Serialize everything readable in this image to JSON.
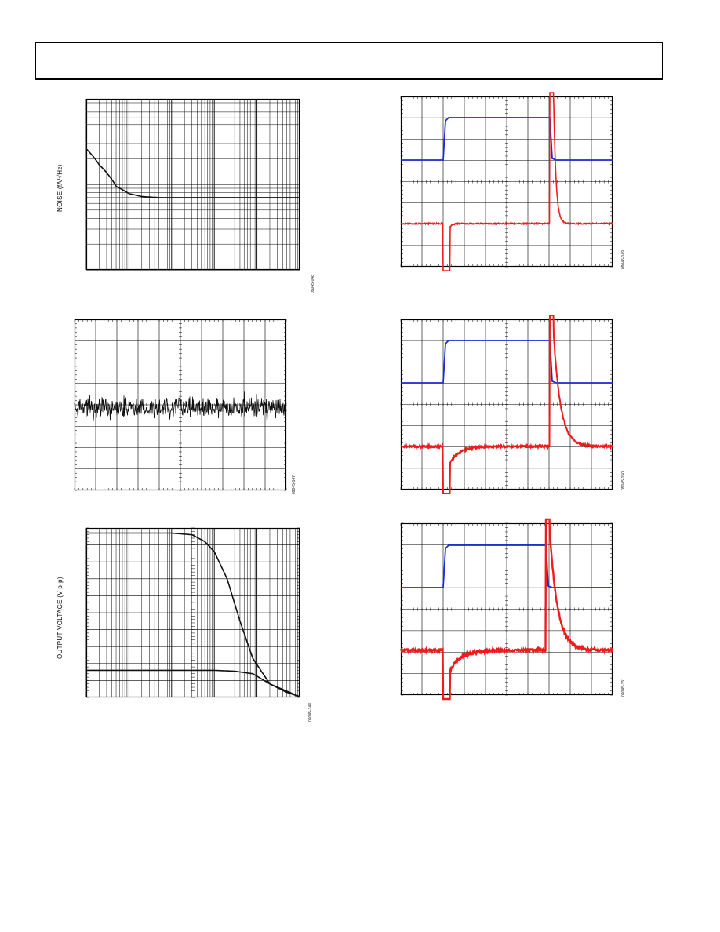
{
  "page": {
    "header": ""
  },
  "figures": [
    {
      "id": "noise",
      "ylabel": "NOISE (fA/√Hz)",
      "fig_id": "09045-048"
    },
    {
      "id": "lowfreq",
      "ylabel": "",
      "fig_id": "09045-147"
    },
    {
      "id": "largesignal",
      "ylabel": "OUTPUT VOLTAGE (V p-p)",
      "fig_id": "09045-148"
    },
    {
      "id": "overload1",
      "ylabel": "",
      "fig_id": "09045-149"
    },
    {
      "id": "overload2",
      "ylabel": "",
      "fig_id": "09045-150"
    },
    {
      "id": "overload3",
      "ylabel": "",
      "fig_id": "09045-151"
    }
  ],
  "colors": {
    "blue": "#1f2bd6",
    "red": "#ee1c1c",
    "black": "#111111"
  },
  "chart_data": [
    {
      "type": "line",
      "chart": "noise",
      "xscale": "log",
      "yscale": "log",
      "xlim": [
        1,
        100000
      ],
      "ylim": [
        0.1,
        10
      ],
      "series": [
        {
          "x": [
            1,
            2,
            5,
            10,
            20,
            50,
            100,
            1000,
            100000
          ],
          "y": [
            2.6,
            1.7,
            0.95,
            0.78,
            0.72,
            0.7,
            0.7,
            0.7,
            0.7
          ]
        }
      ]
    },
    {
      "type": "line",
      "chart": "lowfreq",
      "xlim": [
        0,
        10
      ],
      "ylim": [
        -4,
        4
      ],
      "grid": true,
      "series": [
        {
          "values_generated": true
        }
      ]
    },
    {
      "type": "line",
      "chart": "largesignal",
      "xscale": "log",
      "xlim": [
        1,
        100000
      ],
      "ylim": [
        0,
        10
      ],
      "series": [
        {
          "x": [
            1,
            100,
            300,
            600,
            1000,
            2000,
            4000,
            8000,
            20000,
            100000
          ],
          "y": [
            9.7,
            9.7,
            9.6,
            9.2,
            8.6,
            7.0,
            4.5,
            2.3,
            0.8,
            0.05
          ]
        },
        {
          "x": [
            1,
            100,
            1000,
            3000,
            8000,
            20000,
            50000,
            100000
          ],
          "y": [
            1.6,
            1.6,
            1.6,
            1.55,
            1.4,
            0.8,
            0.3,
            0.05
          ]
        }
      ]
    },
    {
      "type": "line",
      "chart": "overload1",
      "xlim": [
        0,
        10
      ],
      "ylim": [
        0,
        8
      ],
      "grid": true,
      "series": [
        {
          "name": "",
          "color": "blue"
        },
        {
          "name": "",
          "color": "red"
        }
      ]
    },
    {
      "type": "line",
      "chart": "overload2",
      "xlim": [
        0,
        10
      ],
      "ylim": [
        0,
        8
      ],
      "grid": true,
      "series": [
        {
          "name": "",
          "color": "blue"
        },
        {
          "name": "",
          "color": "red"
        }
      ]
    },
    {
      "type": "line",
      "chart": "overload3",
      "xlim": [
        0,
        10
      ],
      "ylim": [
        0,
        8
      ],
      "grid": true,
      "series": [
        {
          "name": "",
          "color": "blue"
        },
        {
          "name": "",
          "color": "red"
        }
      ]
    }
  ]
}
